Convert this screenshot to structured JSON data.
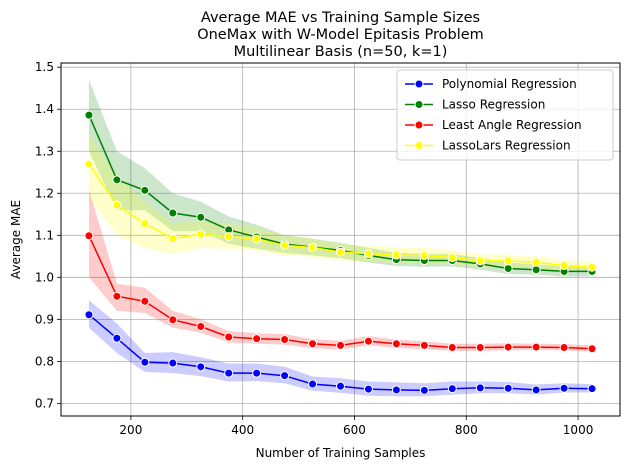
{
  "chart_data": {
    "type": "line",
    "title": [
      "Average MAE vs Training Sample Sizes",
      "OneMax with W-Model Epitasis Problem",
      "Multilinear Basis (n=50, k=1)"
    ],
    "xlabel": "Number of Training Samples",
    "ylabel": "Average MAE",
    "xlim": [
      75,
      1075
    ],
    "ylim": [
      0.67,
      1.51
    ],
    "xticks": [
      200,
      400,
      600,
      800,
      1000
    ],
    "yticks": [
      0.7,
      0.8,
      0.9,
      1.0,
      1.1,
      1.2,
      1.3,
      1.4,
      1.5
    ],
    "grid": true,
    "legend_position": "upper right",
    "x": [
      125,
      175,
      225,
      275,
      325,
      375,
      425,
      475,
      525,
      575,
      625,
      675,
      725,
      775,
      825,
      875,
      925,
      975,
      1025
    ],
    "series": [
      {
        "name": "Polynomial Regression",
        "color": "#0000ff",
        "values": [
          0.911,
          0.855,
          0.798,
          0.796,
          0.787,
          0.772,
          0.772,
          0.766,
          0.746,
          0.741,
          0.734,
          0.732,
          0.731,
          0.735,
          0.737,
          0.736,
          0.732,
          0.736,
          0.735
        ],
        "band_lower": [
          0.88,
          0.82,
          0.775,
          0.772,
          0.765,
          0.752,
          0.753,
          0.748,
          0.73,
          0.725,
          0.718,
          0.717,
          0.717,
          0.721,
          0.724,
          0.724,
          0.721,
          0.726,
          0.726
        ],
        "band_upper": [
          0.945,
          0.89,
          0.82,
          0.822,
          0.81,
          0.795,
          0.795,
          0.787,
          0.764,
          0.76,
          0.752,
          0.75,
          0.748,
          0.752,
          0.752,
          0.751,
          0.745,
          0.748,
          0.746
        ]
      },
      {
        "name": "Lasso Regression",
        "color": "#008000",
        "values": [
          1.386,
          1.232,
          1.207,
          1.153,
          1.143,
          1.113,
          1.096,
          1.079,
          1.072,
          1.064,
          1.052,
          1.042,
          1.04,
          1.04,
          1.032,
          1.021,
          1.018,
          1.014,
          1.014
        ],
        "band_lower": [
          1.3,
          1.16,
          1.16,
          1.11,
          1.11,
          1.08,
          1.068,
          1.058,
          1.052,
          1.046,
          1.035,
          1.027,
          1.025,
          1.026,
          1.018,
          1.008,
          1.006,
          1.002,
          1.003
        ],
        "band_upper": [
          1.47,
          1.3,
          1.26,
          1.2,
          1.18,
          1.145,
          1.125,
          1.1,
          1.092,
          1.082,
          1.07,
          1.058,
          1.056,
          1.055,
          1.046,
          1.035,
          1.031,
          1.026,
          1.025
        ]
      },
      {
        "name": "Least Angle Regression",
        "color": "#ff0000",
        "values": [
          1.099,
          0.955,
          0.943,
          0.899,
          0.883,
          0.858,
          0.854,
          0.852,
          0.842,
          0.838,
          0.848,
          0.842,
          0.838,
          0.833,
          0.833,
          0.834,
          0.834,
          0.833,
          0.83
        ],
        "band_lower": [
          1.0,
          0.92,
          0.915,
          0.88,
          0.868,
          0.845,
          0.842,
          0.84,
          0.831,
          0.828,
          0.838,
          0.832,
          0.829,
          0.825,
          0.825,
          0.826,
          0.827,
          0.826,
          0.823
        ],
        "band_upper": [
          1.21,
          0.985,
          0.975,
          0.92,
          0.9,
          0.872,
          0.867,
          0.865,
          0.853,
          0.849,
          0.86,
          0.852,
          0.848,
          0.842,
          0.842,
          0.843,
          0.842,
          0.841,
          0.838
        ]
      },
      {
        "name": "LassoLars Regression",
        "color": "#ffff00",
        "values": [
          1.269,
          1.172,
          1.128,
          1.092,
          1.103,
          1.097,
          1.091,
          1.076,
          1.071,
          1.06,
          1.056,
          1.053,
          1.052,
          1.047,
          1.039,
          1.039,
          1.036,
          1.028,
          1.024
        ],
        "band_lower": [
          1.19,
          1.1,
          1.07,
          1.055,
          1.07,
          1.068,
          1.064,
          1.052,
          1.049,
          1.04,
          1.037,
          1.035,
          1.035,
          1.031,
          1.024,
          1.024,
          1.022,
          1.015,
          1.012
        ],
        "band_upper": [
          1.34,
          1.24,
          1.18,
          1.13,
          1.135,
          1.128,
          1.118,
          1.1,
          1.092,
          1.08,
          1.075,
          1.072,
          1.07,
          1.064,
          1.055,
          1.054,
          1.05,
          1.041,
          1.036
        ]
      }
    ]
  }
}
